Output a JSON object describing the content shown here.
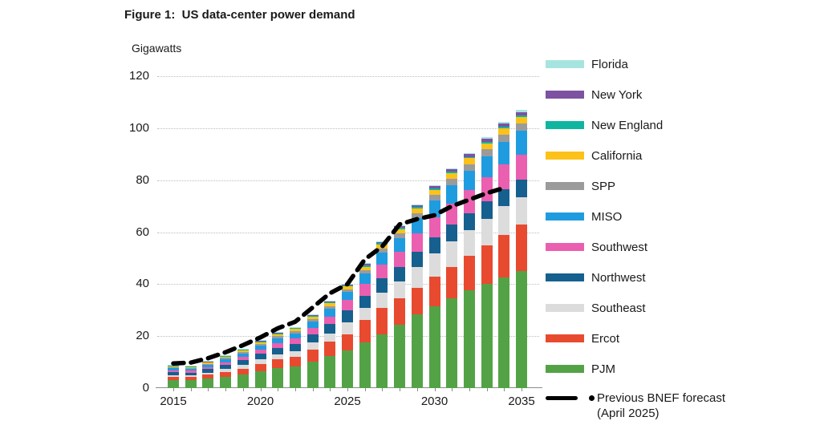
{
  "figure": {
    "title": "Figure 1:  US data-center power demand",
    "unit_label": "Gigawatts"
  },
  "legend": {
    "forecast_label_line1": "Previous BNEF forecast",
    "forecast_label_line2": "(April 2025)",
    "order_top_to_bottom": [
      "Florida",
      "New York",
      "New England",
      "California",
      "SPP",
      "MISO",
      "Southwest",
      "Northwest",
      "Southeast",
      "Ercot",
      "PJM"
    ]
  },
  "chart_data": {
    "type": "bar",
    "subtype": "stacked-bars-with-dashed-forecast-line",
    "title": "Figure 1: US data-center power demand",
    "ylabel": "Gigawatts",
    "ylim": [
      0,
      120
    ],
    "yticks": [
      0,
      20,
      40,
      60,
      80,
      100,
      120
    ],
    "xticks": [
      2015,
      2020,
      2025,
      2030,
      2035
    ],
    "grid": "horizontal dotted",
    "legend_position": "right",
    "x": [
      2015,
      2016,
      2017,
      2018,
      2019,
      2020,
      2021,
      2022,
      2023,
      2024,
      2025,
      2026,
      2027,
      2028,
      2029,
      2030,
      2031,
      2032,
      2033,
      2034,
      2035
    ],
    "series": [
      {
        "name": "PJM",
        "color": "#53a346",
        "values": [
          3.0,
          3.0,
          3.6,
          4.3,
          5.2,
          6.4,
          7.6,
          8.4,
          10.3,
          12.4,
          14.6,
          17.7,
          20.6,
          24.4,
          28.5,
          31.6,
          34.6,
          37.5,
          40.0,
          42.5,
          45.0
        ]
      },
      {
        "name": "Ercot",
        "color": "#e84a30",
        "values": [
          1.3,
          1.2,
          1.5,
          1.9,
          2.3,
          2.9,
          3.4,
          3.7,
          4.5,
          5.4,
          6.0,
          8.4,
          10.3,
          10.2,
          10.0,
          11.3,
          12.1,
          13.5,
          15.0,
          16.5,
          18.0
        ]
      },
      {
        "name": "Southeast",
        "color": "#dcdcdc",
        "values": [
          0.7,
          0.7,
          0.9,
          1.1,
          1.35,
          1.7,
          2.0,
          2.2,
          2.7,
          3.1,
          4.7,
          4.9,
          5.9,
          6.5,
          8.0,
          8.9,
          9.7,
          9.8,
          10.2,
          10.9,
          10.5
        ]
      },
      {
        "name": "Northwest",
        "color": "#15608f",
        "values": [
          1.2,
          1.1,
          1.3,
          1.6,
          1.85,
          2.2,
          2.5,
          2.7,
          3.2,
          3.7,
          4.7,
          4.6,
          5.4,
          5.6,
          6.0,
          6.3,
          6.5,
          6.6,
          6.6,
          6.6,
          6.6
        ]
      },
      {
        "name": "Southwest",
        "color": "#ea5fb0",
        "values": [
          0.7,
          0.7,
          0.85,
          1.1,
          1.3,
          1.6,
          1.85,
          2.0,
          2.4,
          2.9,
          3.8,
          4.6,
          5.4,
          5.9,
          6.9,
          7.6,
          8.2,
          8.7,
          9.2,
          9.5,
          9.8
        ]
      },
      {
        "name": "MISO",
        "color": "#1f9ce0",
        "values": [
          0.8,
          0.75,
          0.9,
          1.15,
          1.35,
          1.6,
          1.9,
          2.1,
          2.45,
          2.9,
          3.2,
          3.9,
          4.6,
          5.1,
          5.9,
          6.5,
          7.1,
          7.6,
          8.1,
          8.7,
          9.0
        ]
      },
      {
        "name": "SPP",
        "color": "#9b9b9b",
        "values": [
          0.3,
          0.3,
          0.35,
          0.45,
          0.5,
          0.6,
          0.7,
          0.75,
          0.9,
          1.0,
          0.9,
          1.2,
          1.5,
          1.7,
          1.9,
          2.1,
          2.3,
          2.5,
          2.7,
          2.9,
          3.0
        ]
      },
      {
        "name": "California",
        "color": "#fcc219",
        "values": [
          0.45,
          0.4,
          0.5,
          0.6,
          0.7,
          0.85,
          0.95,
          1.0,
          1.2,
          1.3,
          1.2,
          1.4,
          1.6,
          1.8,
          1.9,
          2.0,
          2.1,
          2.2,
          2.3,
          2.3,
          2.3
        ]
      },
      {
        "name": "New England",
        "color": "#10b5a0",
        "values": [
          0.15,
          0.15,
          0.15,
          0.15,
          0.2,
          0.2,
          0.2,
          0.25,
          0.25,
          0.3,
          0.3,
          0.4,
          0.45,
          0.5,
          0.5,
          0.55,
          0.6,
          0.6,
          0.65,
          0.7,
          0.7
        ]
      },
      {
        "name": "New York",
        "color": "#7c52a1",
        "values": [
          0.2,
          0.2,
          0.25,
          0.3,
          0.3,
          0.35,
          0.3,
          0.3,
          0.3,
          0.4,
          0.4,
          0.6,
          0.55,
          0.6,
          0.7,
          0.85,
          0.9,
          1.0,
          1.1,
          1.2,
          1.3
        ]
      },
      {
        "name": "Florida",
        "color": "#a8e4df",
        "values": [
          0.1,
          0.1,
          0.1,
          0.15,
          0.15,
          0.1,
          0.1,
          0.1,
          0.1,
          0.1,
          0.2,
          0.3,
          0.2,
          0.2,
          0.2,
          0.3,
          0.4,
          0.5,
          0.6,
          0.7,
          0.8
        ]
      }
    ],
    "forecast": {
      "name": "Previous BNEF forecast (April 2025)",
      "color": "#000000",
      "style": "dashed",
      "x": [
        2015,
        2016,
        2017,
        2018,
        2019,
        2020,
        2021,
        2022,
        2023,
        2024,
        2025,
        2026,
        2027,
        2028,
        2029,
        2030,
        2031,
        2032,
        2033,
        2034
      ],
      "values": [
        9.5,
        9.8,
        11.5,
        13.8,
        16.5,
        19.5,
        23.0,
        25.5,
        31.0,
        36.5,
        40.0,
        49.5,
        54.5,
        63.0,
        65.0,
        66.5,
        70.0,
        72.5,
        75.0,
        77.0
      ]
    }
  }
}
